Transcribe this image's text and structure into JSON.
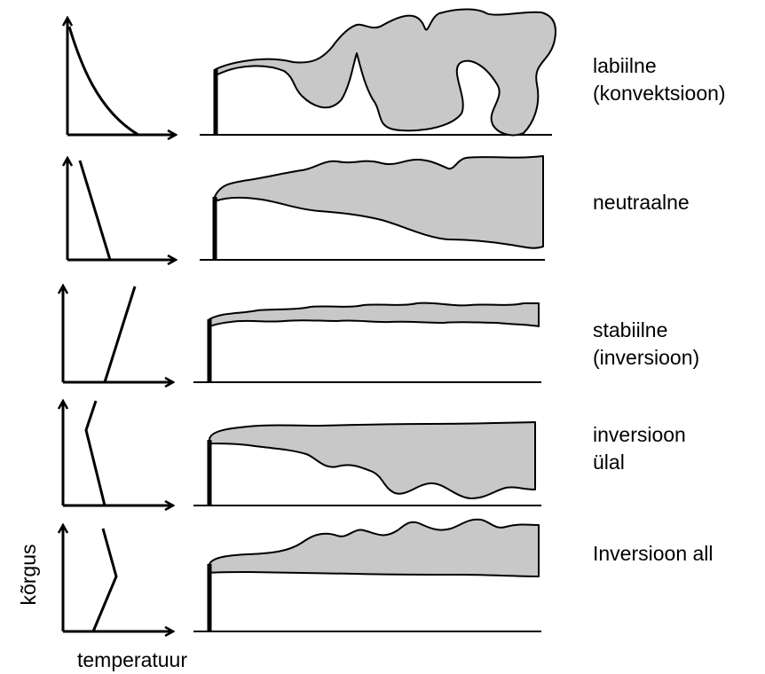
{
  "diagram": {
    "rows": [
      {
        "id": "labiilne",
        "label_lines": [
          "labiilne",
          "(konvektsioon)"
        ]
      },
      {
        "id": "neutraalne",
        "label_lines": [
          "neutraalne"
        ]
      },
      {
        "id": "stabiilne",
        "label_lines": [
          "stabiilne",
          "(inversioon)"
        ]
      },
      {
        "id": "inversioon-ulal",
        "label_lines": [
          "inversioon",
          "ülal"
        ]
      },
      {
        "id": "inversioon-all",
        "label_lines": [
          "Inversioon all"
        ]
      }
    ],
    "y_axis_label": "kõrgus",
    "x_axis_label": "temperatuur"
  }
}
